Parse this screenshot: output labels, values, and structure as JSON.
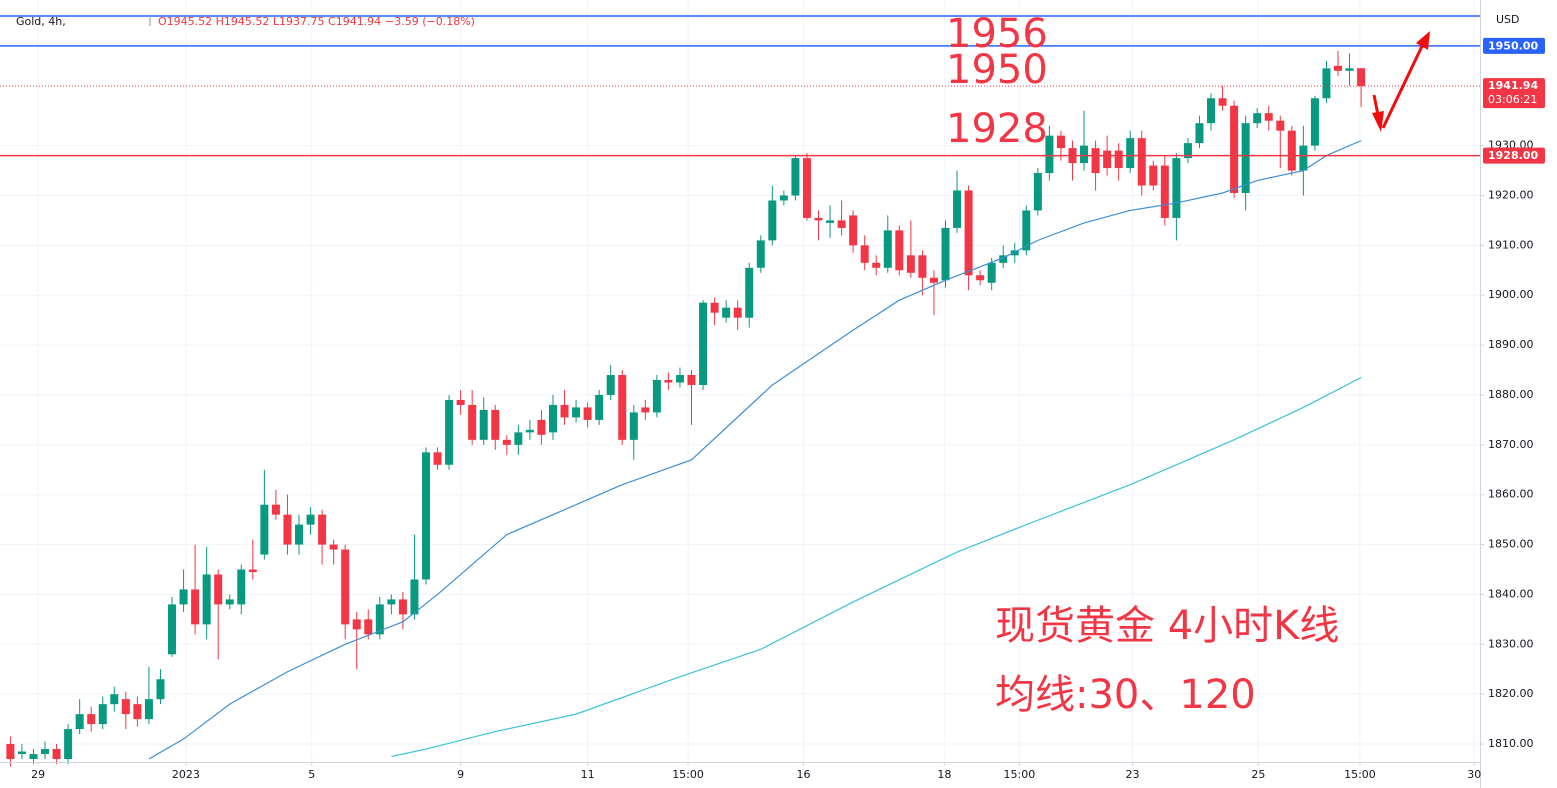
{
  "chart_data": {
    "type": "candlestick",
    "header": {
      "symbol": "Gold, 4h,",
      "ohlc": "O1945.52 H1945.52 L1937.75 C1941.94",
      "change": "−3.59 (−0.18%)"
    },
    "currency": "USD",
    "up_color": "#089981",
    "down_color": "#f23645",
    "grid": true,
    "open": [
      1810,
      1808,
      1807,
      1808,
      1809,
      1807,
      1813,
      1816,
      1814,
      1818,
      1819,
      1818,
      1815,
      1819,
      1828,
      1838,
      1841,
      1834,
      1844,
      1838,
      1838,
      1845,
      1848,
      1858,
      1856,
      1850,
      1854,
      1856,
      1850,
      1849,
      1835,
      1835,
      1832,
      1838,
      1839,
      1836,
      1843,
      1868.5,
      1866,
      1879,
      1878,
      1871,
      1877,
      1871,
      1870,
      1872.5,
      1875,
      1872.5,
      1878,
      1875.5,
      1877.5,
      1875,
      1880,
      1884,
      1871,
      1877.5,
      1876.5,
      1883,
      1882.5,
      1884,
      1882,
      1898.5,
      1895.5,
      1897.5,
      1895.5,
      1905.5,
      1911,
      1919,
      1920,
      1927.5,
      1915.5,
      1914.5,
      1915,
      1916,
      1910,
      1906.5,
      1905.5,
      1913,
      1908,
      1908,
      1903.5,
      1903,
      1913.5,
      1921,
      1904,
      1902.5,
      1906.5,
      1908,
      1909,
      1917,
      1924.5,
      1932,
      1929.5,
      1926.5,
      1929.5,
      1929,
      1929,
      1925.5,
      1931.5,
      1926,
      1926,
      1915.5,
      1927.5,
      1930.5,
      1934.5,
      1939.5,
      1938,
      1920.5,
      1934.5,
      1936.5,
      1935,
      1933,
      1925,
      1930,
      1939.5,
      1946,
      1945,
      1945.52
    ],
    "high": [
      1811.5,
      1810,
      1809,
      1810.5,
      1810,
      1814,
      1819,
      1817.5,
      1819.5,
      1821.5,
      1820.5,
      1819.5,
      1825.5,
      1825,
      1839.5,
      1845,
      1850,
      1849.5,
      1845,
      1840,
      1846,
      1851,
      1865,
      1861,
      1860,
      1856,
      1857.5,
      1857,
      1851,
      1850,
      1836.5,
      1837,
      1839.5,
      1840,
      1840.5,
      1852,
      1869.5,
      1869.5,
      1880,
      1881,
      1881,
      1879.5,
      1878,
      1872,
      1874,
      1875,
      1877,
      1880,
      1881,
      1879,
      1878.5,
      1881,
      1886,
      1885,
      1878,
      1879,
      1884,
      1884.5,
      1885.5,
      1885,
      1899,
      1899.5,
      1899,
      1899,
      1906.5,
      1912,
      1922,
      1921,
      1928,
      1928.5,
      1917,
      1918,
      1919,
      1917,
      1912,
      1908,
      1916,
      1914,
      1915,
      1909,
      1905,
      1915,
      1925,
      1922,
      1905,
      1907.5,
      1910,
      1910.5,
      1918,
      1925.5,
      1934,
      1933,
      1931,
      1937,
      1931,
      1932,
      1930.5,
      1933,
      1933,
      1927,
      1928,
      1928.5,
      1931.5,
      1936,
      1940.5,
      1942,
      1939,
      1936,
      1937.5,
      1938,
      1936,
      1934,
      1934,
      1940,
      1947,
      1949,
      1948.5,
      1945.52
    ],
    "low": [
      1805.5,
      1807,
      1806,
      1807,
      1806,
      1806,
      1812,
      1812.5,
      1813,
      1816.5,
      1813,
      1813.5,
      1814,
      1818,
      1827.5,
      1836.5,
      1832,
      1831,
      1827,
      1837,
      1836,
      1843,
      1847,
      1855,
      1848,
      1848,
      1852,
      1846,
      1846,
      1831,
      1825,
      1831,
      1831,
      1836,
      1833,
      1835,
      1842,
      1865,
      1865,
      1876,
      1870,
      1870,
      1869,
      1868,
      1868,
      1871,
      1870,
      1871,
      1874,
      1874.5,
      1873.5,
      1874,
      1879,
      1870,
      1867,
      1875,
      1875.5,
      1881,
      1881.5,
      1874,
      1881,
      1894,
      1894.5,
      1893,
      1893.5,
      1904.5,
      1910,
      1918,
      1919,
      1915,
      1911,
      1911.5,
      1912,
      1908.5,
      1905,
      1904,
      1904.5,
      1904,
      1903.5,
      1900,
      1896,
      1901.5,
      1912.5,
      1901,
      1902,
      1901,
      1905.5,
      1906.5,
      1908,
      1916,
      1923,
      1927,
      1923,
      1925,
      1921,
      1924,
      1923,
      1924.5,
      1920,
      1921,
      1914,
      1911,
      1926.5,
      1929.5,
      1933,
      1937,
      1919.5,
      1917,
      1933.5,
      1933,
      1925.5,
      1924,
      1920,
      1929,
      1938.5,
      1944,
      1942,
      1937.75
    ],
    "close": [
      1807,
      1808.5,
      1808,
      1809,
      1807,
      1813,
      1816,
      1814,
      1818,
      1820,
      1816,
      1815,
      1819,
      1823,
      1838,
      1841,
      1834,
      1844,
      1838,
      1839,
      1845,
      1844.5,
      1858,
      1856,
      1850,
      1854,
      1856,
      1850,
      1849,
      1834,
      1833,
      1832,
      1838,
      1839,
      1836,
      1843,
      1868.5,
      1866,
      1879,
      1878,
      1871,
      1877,
      1871,
      1870,
      1872.5,
      1873,
      1872,
      1878,
      1875.5,
      1877.5,
      1875,
      1880,
      1884,
      1871,
      1876.5,
      1876.5,
      1883,
      1882.5,
      1884,
      1882,
      1898.5,
      1896.5,
      1897.5,
      1895.5,
      1905.5,
      1911,
      1919,
      1920,
      1927.5,
      1915.5,
      1915,
      1915,
      1913.5,
      1910,
      1906.5,
      1905.5,
      1913,
      1905,
      1904.5,
      1903.5,
      1902.5,
      1913.5,
      1921,
      1904,
      1903,
      1906.5,
      1908,
      1909,
      1917,
      1924.5,
      1932,
      1929.5,
      1926.5,
      1930,
      1924.5,
      1925.5,
      1925.5,
      1931.5,
      1922,
      1922,
      1915.5,
      1927.5,
      1930.5,
      1934.5,
      1939.5,
      1938,
      1920.5,
      1934.5,
      1936.5,
      1935,
      1933,
      1925,
      1930,
      1939.5,
      1945.5,
      1945,
      1945.5,
      1941.94
    ],
    "series": [
      {
        "color": "#3d8fd6",
        "x": [
          12,
          15,
          19,
          24,
          29,
          34,
          37,
          43,
          48,
          53,
          59,
          66,
          73,
          77,
          81,
          86,
          89,
          93,
          97,
          101,
          105,
          108,
          112,
          114,
          117
        ],
        "values": [
          1807,
          1811,
          1818,
          1824.5,
          1830,
          1834.5,
          1840,
          1852,
          1857,
          1862,
          1867,
          1882,
          1893,
          1899,
          1903,
          1907.5,
          1911,
          1914.5,
          1917,
          1918.5,
          1920.5,
          1923,
          1925,
          1928,
          1931
        ]
      },
      {
        "color": "#3cc3d9",
        "x": [
          33,
          36,
          42,
          49,
          58,
          65,
          73,
          82,
          88,
          97,
          106,
          112,
          117
        ],
        "values": [
          1807.5,
          1809,
          1812.5,
          1816,
          1823.5,
          1829,
          1838.5,
          1848.5,
          1854,
          1862,
          1871,
          1877.5,
          1883.5
        ]
      }
    ],
    "xlim": [
      -0.9,
      127.3
    ],
    "xticks": [
      {
        "value": 2.4,
        "label": "29"
      },
      {
        "value": 15.2,
        "label": "2023"
      },
      {
        "value": 26.1,
        "label": "5"
      },
      {
        "value": 39,
        "label": "9"
      },
      {
        "value": 50,
        "label": "11"
      },
      {
        "value": 58.7,
        "label": "15:00"
      },
      {
        "value": 68.7,
        "label": "16"
      },
      {
        "value": 80.9,
        "label": "18"
      },
      {
        "value": 87.4,
        "label": "15:00"
      },
      {
        "value": 97.2,
        "label": "23"
      },
      {
        "value": 108.1,
        "label": "25"
      },
      {
        "value": 116.9,
        "label": "15:00"
      },
      {
        "value": 126.8,
        "label": "30"
      }
    ],
    "ylim": [
      1806.4,
      1959.2
    ],
    "yticks": [
      {
        "value": 1810,
        "label": "1810.00"
      },
      {
        "value": 1820,
        "label": "1820.00"
      },
      {
        "value": 1830,
        "label": "1830.00"
      },
      {
        "value": 1840,
        "label": "1840.00"
      },
      {
        "value": 1850,
        "label": "1850.00"
      },
      {
        "value": 1860,
        "label": "1860.00"
      },
      {
        "value": 1870,
        "label": "1870.00"
      },
      {
        "value": 1880,
        "label": "1880.00"
      },
      {
        "value": 1890,
        "label": "1890.00"
      },
      {
        "value": 1900,
        "label": "1900.00"
      },
      {
        "value": 1910,
        "label": "1910.00"
      },
      {
        "value": 1920,
        "label": "1920.00"
      },
      {
        "value": 1930,
        "label": "1930.00"
      }
    ],
    "levels": [
      {
        "value": 1956,
        "color": "#2962ff"
      },
      {
        "value": 1950,
        "label": "1950.00",
        "color": "#2962ff"
      },
      {
        "value": 1928,
        "label": "1928.00",
        "color": "#f23645"
      }
    ],
    "last": {
      "value": 1941.94,
      "countdown": "03:06:21",
      "color": "#f23645"
    },
    "annotations": [
      "现货黄金 4小时K线",
      "均线:30、120"
    ]
  }
}
